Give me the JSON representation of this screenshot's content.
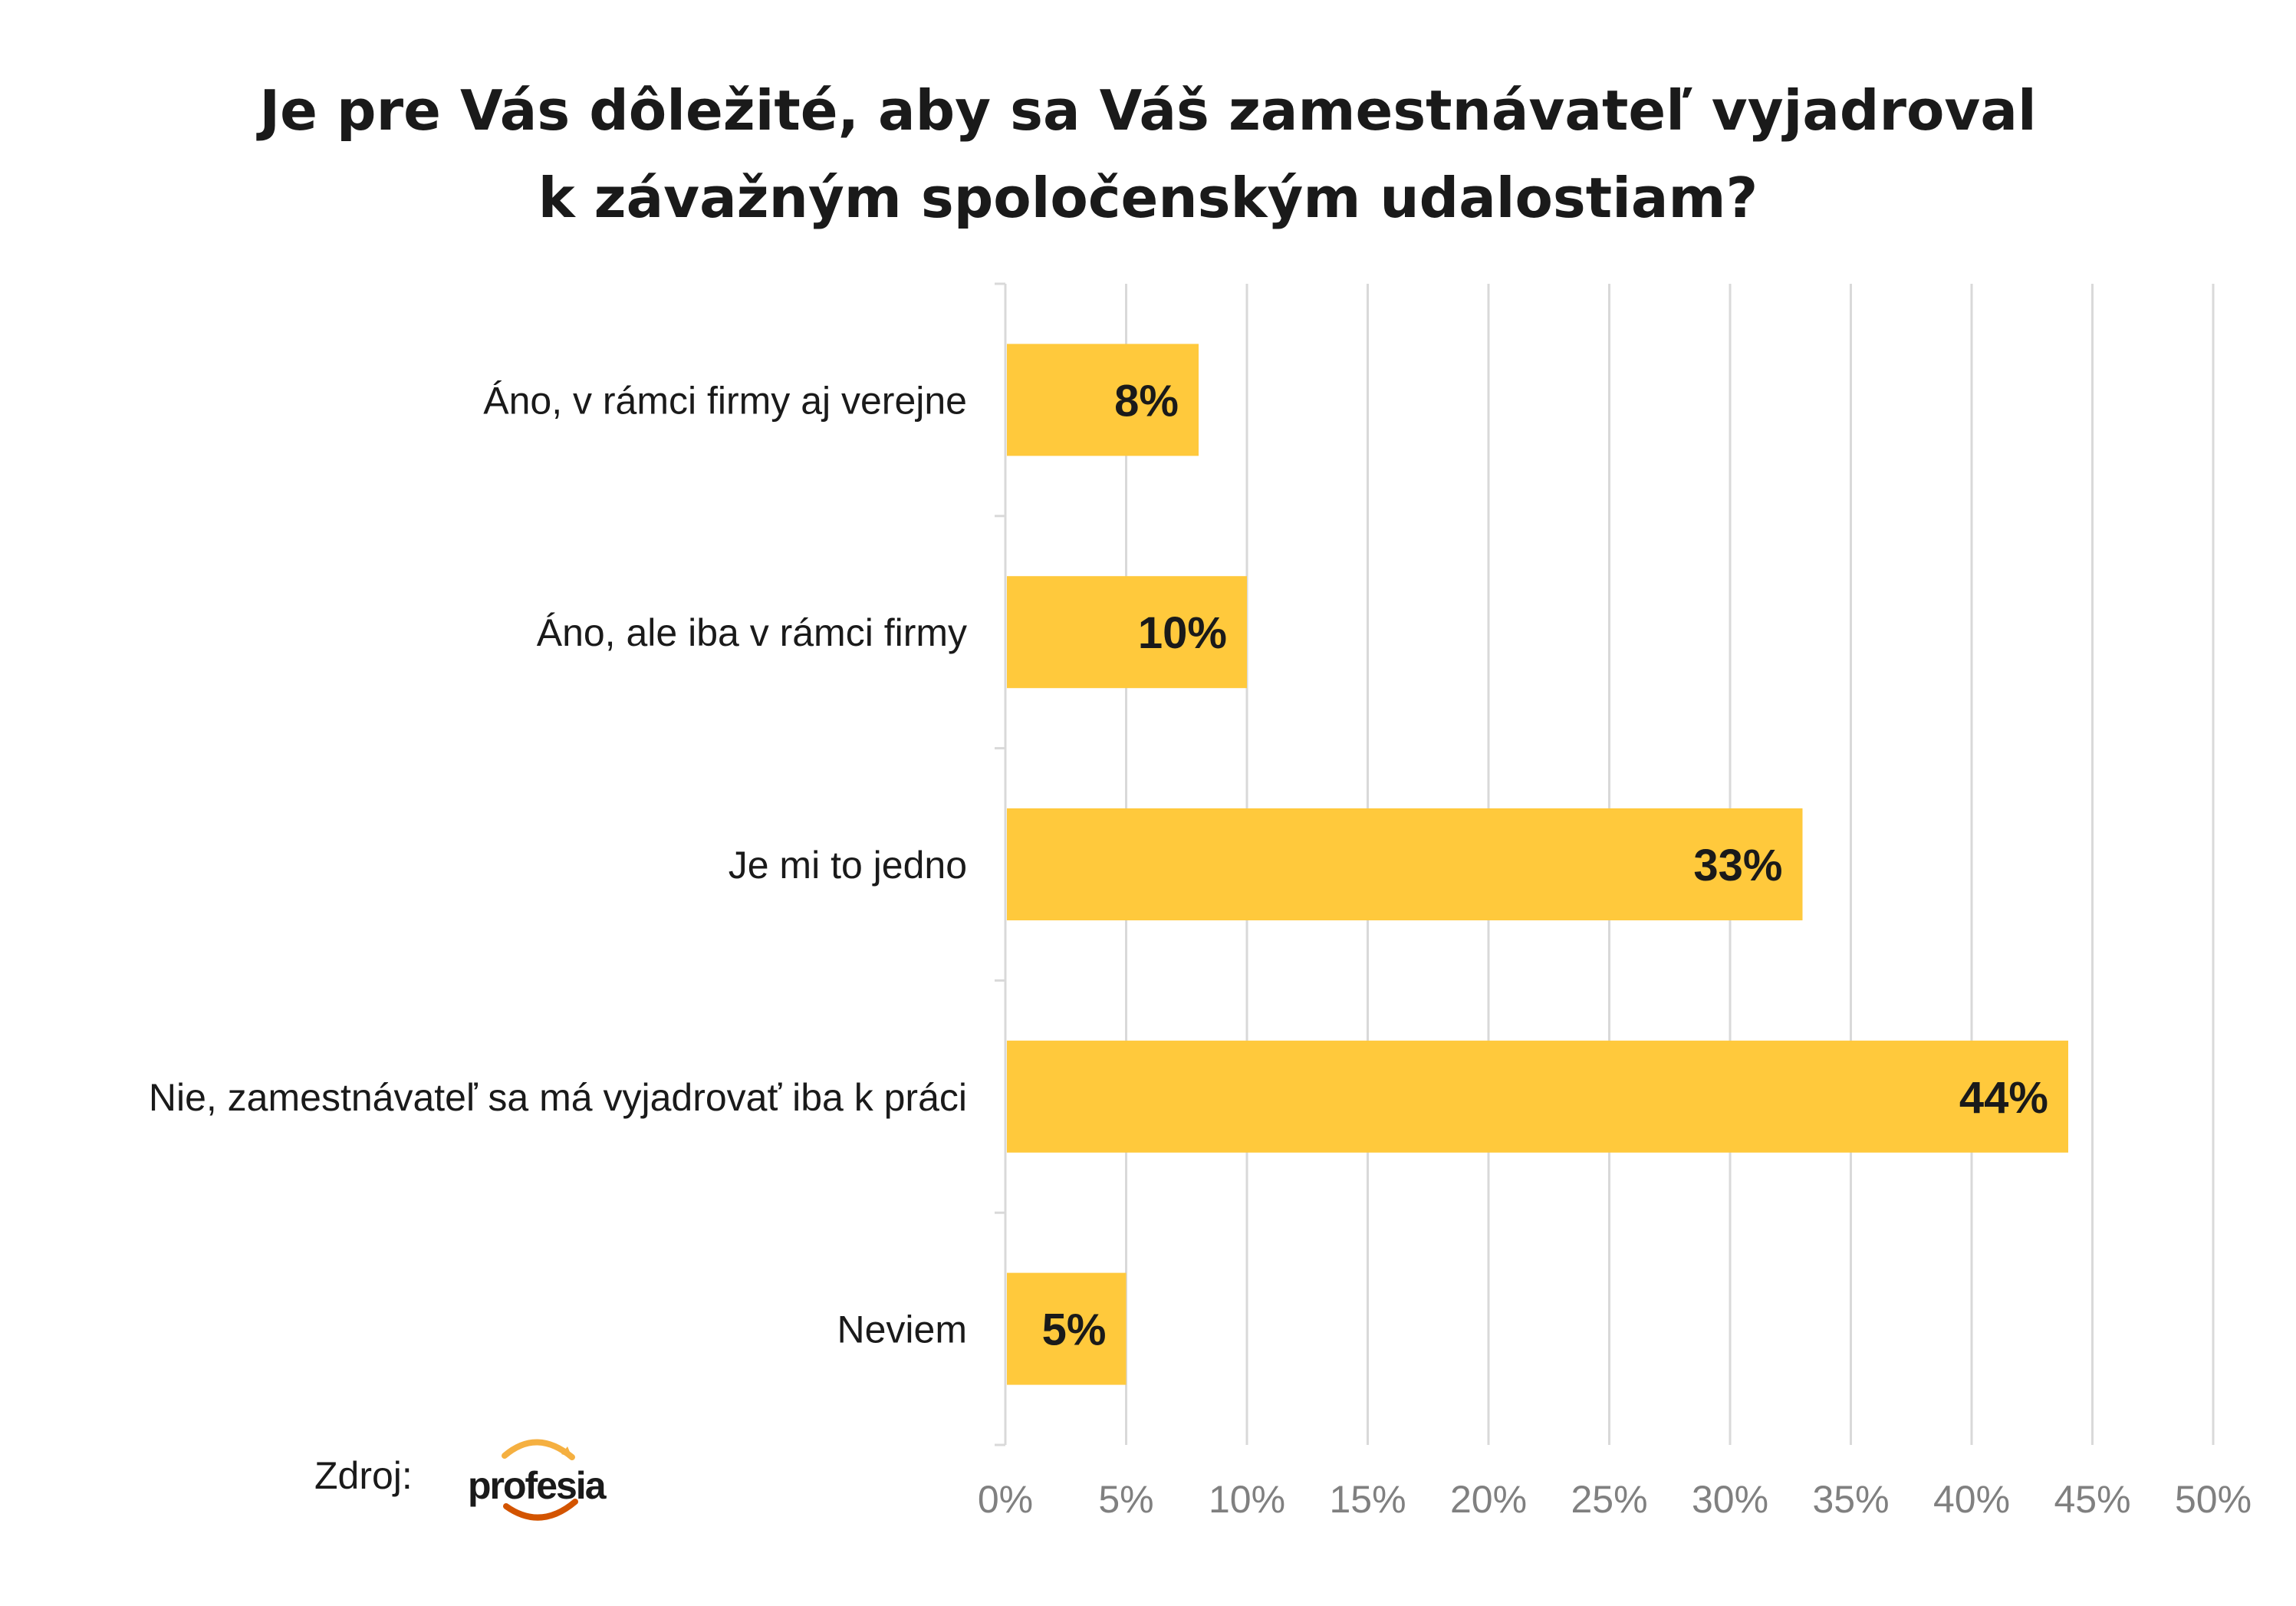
{
  "chart_data": {
    "type": "bar",
    "orientation": "horizontal",
    "title_lines": [
      "Je pre Vás dôležité, aby sa Váš zamestnávateľ vyjadroval",
      "k závažným spoločenským udalostiam?"
    ],
    "categories": [
      "Áno, v rámci firmy aj verejne",
      "Áno, ale iba v rámci firmy",
      "Je mi to jedno",
      "Nie, zamestnávateľ sa má vyjadrovať iba k práci",
      "Neviem"
    ],
    "values": [
      8,
      10,
      33,
      44,
      5
    ],
    "value_labels": [
      "8%",
      "10%",
      "33%",
      "44%",
      "5%"
    ],
    "xlim": [
      0,
      50
    ],
    "ticks": [
      0,
      5,
      10,
      15,
      20,
      25,
      30,
      35,
      40,
      45,
      50
    ],
    "tick_labels": [
      "0%",
      "5%",
      "10%",
      "15%",
      "20%",
      "25%",
      "30%",
      "35%",
      "40%",
      "45%",
      "50%"
    ],
    "grid": true,
    "bar_color": "#FFC93C",
    "grid_color": "#D9D9D9"
  },
  "source": {
    "label": "Zdroj:",
    "logo_text": "profesia",
    "logo_colors": [
      "#F5B041",
      "#D35400"
    ]
  }
}
